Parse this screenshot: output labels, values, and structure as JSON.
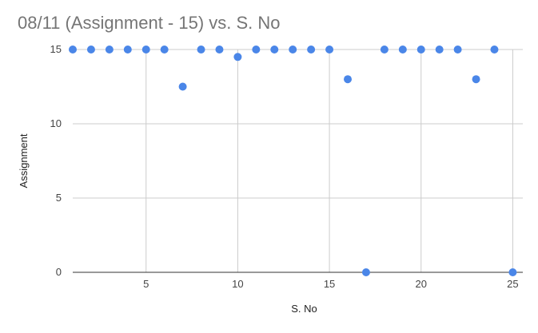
{
  "chart_data": {
    "type": "scatter",
    "title": "08/11 (Assignment - 15) vs. S. No",
    "xlabel": "S. No",
    "ylabel": "Assignment",
    "xlim": [
      1,
      25.2
    ],
    "ylim": [
      0,
      15
    ],
    "x_ticks": [
      5,
      10,
      15,
      20,
      25
    ],
    "y_ticks": [
      0,
      5,
      10,
      15
    ],
    "grid": true,
    "legend": "none",
    "colors": {
      "point": "#4a86e8",
      "grid": "#cccccc",
      "axis": "#333333"
    },
    "series": [
      {
        "x": [
          1,
          2,
          3,
          4,
          5,
          6,
          7,
          8,
          9,
          10,
          11,
          12,
          13,
          14,
          15,
          16,
          17,
          18,
          19,
          20,
          21,
          22,
          23,
          24,
          25
        ],
        "y": [
          15,
          15,
          15,
          15,
          15,
          15,
          12.5,
          15,
          15,
          14.5,
          15,
          15,
          15,
          15,
          15,
          13,
          0,
          15,
          15,
          15,
          15,
          15,
          13,
          15,
          0
        ]
      }
    ]
  }
}
